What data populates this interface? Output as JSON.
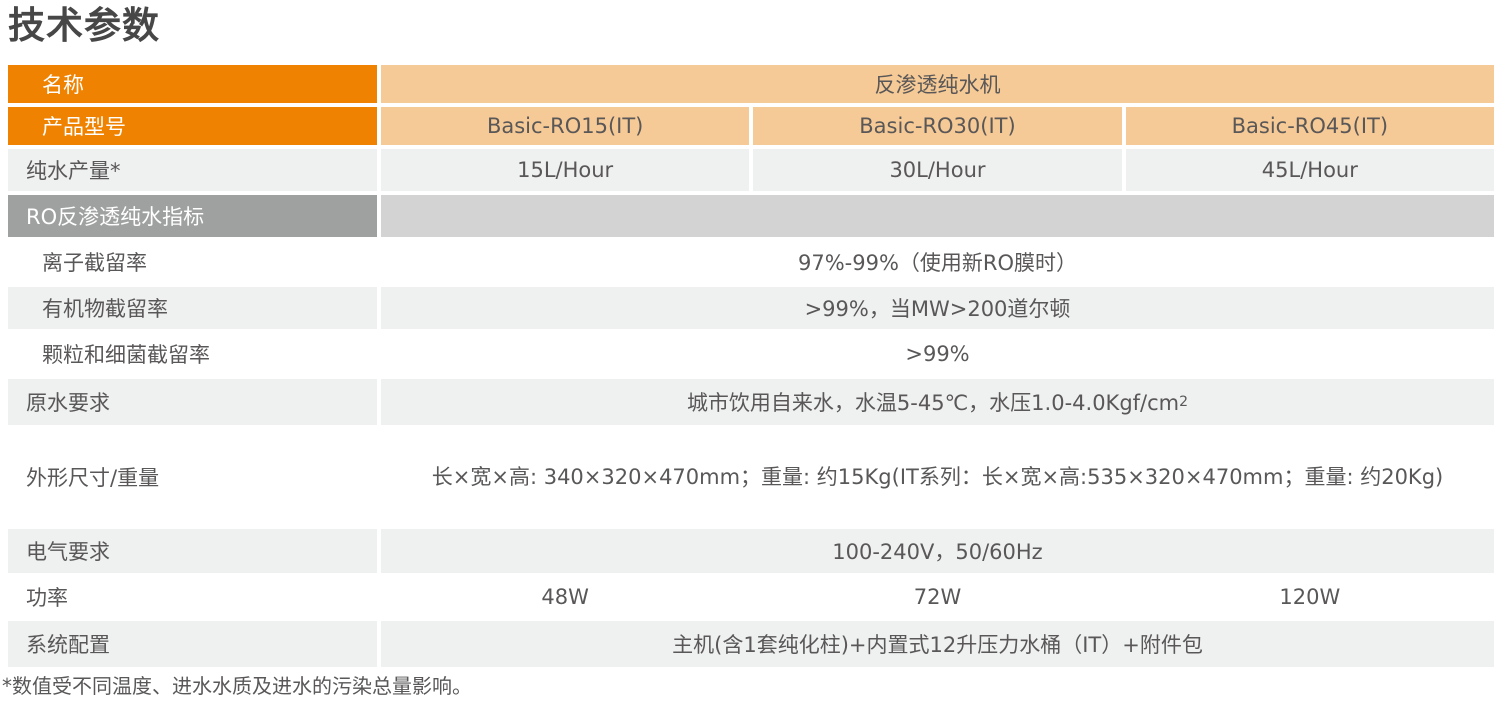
{
  "page": {
    "title": "技术参数",
    "footnote": "*数值受不同温度、进水水质及进水的污染总量影响。"
  },
  "colors": {
    "header_orange": "#ef8200",
    "header_peach": "#f6ca96",
    "row_light_gray": "#eff0f0",
    "section_dark_gray": "#9fa0a0",
    "section_right_gray": "#d3d3d4",
    "body_text": "#595757",
    "header_text": "#ffffff"
  },
  "table": {
    "rows": [
      {
        "label": "名称",
        "value": "反渗透纯水机"
      },
      {
        "label": "产品型号",
        "values": [
          "Basic-RO15(IT)",
          "Basic-RO30(IT)",
          "Basic-RO45(IT)"
        ]
      },
      {
        "label": "纯水产量*",
        "values": [
          "15L/Hour",
          "30L/Hour",
          "45L/Hour"
        ]
      },
      {
        "label": "RO反渗透纯水指标",
        "value": ""
      },
      {
        "label": "离子截留率",
        "value": "97%-99%（使用新RO膜时）"
      },
      {
        "label": "有机物截留率",
        "value": ">99%，当MW>200道尔顿"
      },
      {
        "label": "颗粒和细菌截留率",
        "value": ">99%"
      },
      {
        "label": "原水要求",
        "value": "城市饮用自来水，水温5-45℃，水压1.0-4.0Kgf/cm",
        "value_sup": "2"
      },
      {
        "label": "外形尺寸/重量",
        "value": "长×宽×高: 340×320×470mm；重量: 约15Kg(IT系列：长×宽×高:535×320×470mm；重量: 约20Kg)"
      },
      {
        "label": "电气要求",
        "value": "100-240V，50/60Hz"
      },
      {
        "label": "功率",
        "values": [
          "48W",
          "72W",
          "120W"
        ]
      },
      {
        "label": "系统配置",
        "value": "主机(含1套纯化柱)+内置式12升压力水桶（IT）+附件包"
      }
    ]
  }
}
